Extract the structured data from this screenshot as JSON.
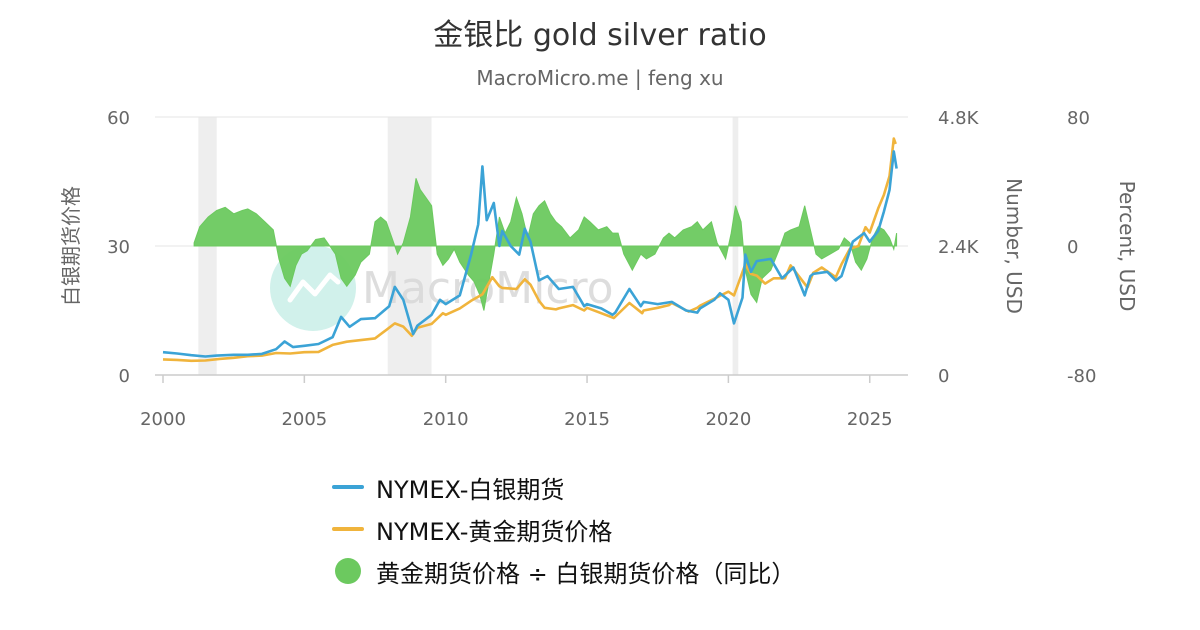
{
  "chart_data": {
    "type": "line",
    "title": "金银比 gold silver ratio",
    "subtitle": "MacroMicro.me | feng xu",
    "watermark": "MacroMicro",
    "x_ticks": [
      "2000",
      "2005",
      "2010",
      "2015",
      "2020",
      "2025"
    ],
    "x_range": [
      2000,
      2026
    ],
    "y_axes": [
      {
        "id": "left",
        "title": "白银期货价格",
        "ticks": [
          "0",
          "30",
          "60"
        ],
        "range": [
          0,
          60
        ]
      },
      {
        "id": "right1",
        "title": "Number, USD",
        "ticks": [
          "0",
          "2.4K",
          "4.8K"
        ],
        "range": [
          0,
          4800
        ]
      },
      {
        "id": "right2",
        "title": "Percent, USD",
        "ticks": [
          "-80",
          "0",
          "80"
        ],
        "range": [
          -80,
          80
        ]
      }
    ],
    "recession_bands": [
      [
        2001.25,
        2001.9
      ],
      [
        2007.95,
        2009.5
      ],
      [
        2020.15,
        2020.35
      ]
    ],
    "series": [
      {
        "name": "NYMEX-白银期货",
        "type": "line",
        "axis": "left",
        "color": "#3ba3d6",
        "points": [
          [
            2000.0,
            5.3
          ],
          [
            2000.5,
            5.0
          ],
          [
            2001.0,
            4.6
          ],
          [
            2001.5,
            4.3
          ],
          [
            2001.9,
            4.5
          ],
          [
            2002.5,
            4.7
          ],
          [
            2003.0,
            4.7
          ],
          [
            2003.5,
            4.9
          ],
          [
            2004.0,
            6.0
          ],
          [
            2004.3,
            7.8
          ],
          [
            2004.6,
            6.5
          ],
          [
            2005.0,
            6.8
          ],
          [
            2005.5,
            7.2
          ],
          [
            2006.0,
            8.8
          ],
          [
            2006.3,
            13.5
          ],
          [
            2006.6,
            11.2
          ],
          [
            2007.0,
            13.0
          ],
          [
            2007.5,
            13.2
          ],
          [
            2008.0,
            16.0
          ],
          [
            2008.2,
            20.5
          ],
          [
            2008.5,
            17.5
          ],
          [
            2008.85,
            9.5
          ],
          [
            2009.0,
            11.5
          ],
          [
            2009.5,
            14.0
          ],
          [
            2009.8,
            17.5
          ],
          [
            2010.0,
            16.5
          ],
          [
            2010.5,
            18.5
          ],
          [
            2010.9,
            28.0
          ],
          [
            2011.15,
            35.0
          ],
          [
            2011.3,
            48.5
          ],
          [
            2011.45,
            36.0
          ],
          [
            2011.7,
            40.0
          ],
          [
            2011.9,
            30.0
          ],
          [
            2012.0,
            33.5
          ],
          [
            2012.3,
            30.0
          ],
          [
            2012.6,
            28.0
          ],
          [
            2012.8,
            34.0
          ],
          [
            2013.0,
            31.0
          ],
          [
            2013.3,
            22.0
          ],
          [
            2013.6,
            23.0
          ],
          [
            2014.0,
            20.0
          ],
          [
            2014.5,
            20.5
          ],
          [
            2014.9,
            16.0
          ],
          [
            2015.0,
            16.5
          ],
          [
            2015.5,
            15.5
          ],
          [
            2015.9,
            14.0
          ],
          [
            2016.0,
            14.5
          ],
          [
            2016.5,
            20.0
          ],
          [
            2016.9,
            16.0
          ],
          [
            2017.0,
            17.0
          ],
          [
            2017.5,
            16.5
          ],
          [
            2018.0,
            17.0
          ],
          [
            2018.5,
            15.0
          ],
          [
            2018.9,
            14.5
          ],
          [
            2019.0,
            15.5
          ],
          [
            2019.5,
            17.5
          ],
          [
            2019.7,
            19.0
          ],
          [
            2020.0,
            17.5
          ],
          [
            2020.2,
            12.0
          ],
          [
            2020.5,
            18.0
          ],
          [
            2020.6,
            28.0
          ],
          [
            2020.8,
            24.0
          ],
          [
            2021.0,
            26.5
          ],
          [
            2021.5,
            27.0
          ],
          [
            2021.9,
            22.5
          ],
          [
            2022.3,
            25.0
          ],
          [
            2022.7,
            18.5
          ],
          [
            2022.9,
            23.0
          ],
          [
            2023.0,
            23.5
          ],
          [
            2023.5,
            24.0
          ],
          [
            2023.8,
            22.0
          ],
          [
            2024.0,
            23.0
          ],
          [
            2024.4,
            31.0
          ],
          [
            2024.8,
            33.0
          ],
          [
            2025.0,
            31.0
          ],
          [
            2025.3,
            33.5
          ],
          [
            2025.5,
            38.0
          ],
          [
            2025.7,
            43.0
          ],
          [
            2025.85,
            52.0
          ],
          [
            2025.95,
            48.0
          ]
        ]
      },
      {
        "name": "NYMEX-黄金期货价格",
        "type": "line",
        "axis": "right1",
        "color": "#f0b43c",
        "points": [
          [
            2000.0,
            290
          ],
          [
            2000.5,
            280
          ],
          [
            2001.0,
            265
          ],
          [
            2001.5,
            270
          ],
          [
            2002.0,
            300
          ],
          [
            2002.5,
            320
          ],
          [
            2003.0,
            350
          ],
          [
            2003.5,
            360
          ],
          [
            2004.0,
            410
          ],
          [
            2004.5,
            400
          ],
          [
            2005.0,
            425
          ],
          [
            2005.5,
            430
          ],
          [
            2006.0,
            560
          ],
          [
            2006.5,
            620
          ],
          [
            2007.0,
            650
          ],
          [
            2007.5,
            680
          ],
          [
            2007.9,
            840
          ],
          [
            2008.2,
            960
          ],
          [
            2008.5,
            900
          ],
          [
            2008.8,
            730
          ],
          [
            2009.0,
            880
          ],
          [
            2009.5,
            950
          ],
          [
            2009.9,
            1150
          ],
          [
            2010.0,
            1120
          ],
          [
            2010.5,
            1240
          ],
          [
            2010.9,
            1380
          ],
          [
            2011.3,
            1500
          ],
          [
            2011.65,
            1820
          ],
          [
            2011.9,
            1650
          ],
          [
            2012.0,
            1620
          ],
          [
            2012.5,
            1600
          ],
          [
            2012.8,
            1780
          ],
          [
            2013.0,
            1680
          ],
          [
            2013.3,
            1380
          ],
          [
            2013.5,
            1250
          ],
          [
            2013.9,
            1220
          ],
          [
            2014.0,
            1240
          ],
          [
            2014.5,
            1300
          ],
          [
            2014.9,
            1200
          ],
          [
            2015.0,
            1250
          ],
          [
            2015.5,
            1150
          ],
          [
            2015.95,
            1060
          ],
          [
            2016.5,
            1340
          ],
          [
            2016.95,
            1150
          ],
          [
            2017.0,
            1200
          ],
          [
            2017.5,
            1250
          ],
          [
            2017.9,
            1300
          ],
          [
            2018.0,
            1340
          ],
          [
            2018.6,
            1180
          ],
          [
            2018.9,
            1250
          ],
          [
            2019.0,
            1290
          ],
          [
            2019.5,
            1420
          ],
          [
            2019.8,
            1500
          ],
          [
            2020.0,
            1550
          ],
          [
            2020.2,
            1480
          ],
          [
            2020.6,
            2060
          ],
          [
            2020.8,
            1880
          ],
          [
            2021.0,
            1850
          ],
          [
            2021.3,
            1700
          ],
          [
            2021.6,
            1800
          ],
          [
            2022.0,
            1800
          ],
          [
            2022.2,
            2040
          ],
          [
            2022.8,
            1630
          ],
          [
            2023.0,
            1900
          ],
          [
            2023.3,
            2000
          ],
          [
            2023.8,
            1820
          ],
          [
            2024.0,
            2060
          ],
          [
            2024.3,
            2350
          ],
          [
            2024.6,
            2400
          ],
          [
            2024.85,
            2750
          ],
          [
            2025.0,
            2650
          ],
          [
            2025.3,
            3100
          ],
          [
            2025.5,
            3350
          ],
          [
            2025.7,
            3700
          ],
          [
            2025.85,
            4400
          ],
          [
            2025.92,
            4300
          ]
        ]
      },
      {
        "name": "黄金期货价格 ÷ 白银期货价格（同比）",
        "type": "area",
        "axis": "right2",
        "color": "#6cc95f",
        "points": [
          [
            2001.1,
            2
          ],
          [
            2001.3,
            12
          ],
          [
            2001.6,
            18
          ],
          [
            2001.9,
            22
          ],
          [
            2002.2,
            24
          ],
          [
            2002.5,
            20
          ],
          [
            2002.8,
            22
          ],
          [
            2003.0,
            23
          ],
          [
            2003.3,
            20
          ],
          [
            2003.6,
            15
          ],
          [
            2003.9,
            10
          ],
          [
            2004.1,
            -8
          ],
          [
            2004.3,
            -20
          ],
          [
            2004.5,
            -25
          ],
          [
            2004.7,
            -12
          ],
          [
            2004.9,
            -5
          ],
          [
            2005.1,
            -3
          ],
          [
            2005.4,
            4
          ],
          [
            2005.7,
            5
          ],
          [
            2005.9,
            0
          ],
          [
            2006.1,
            -5
          ],
          [
            2006.3,
            -20
          ],
          [
            2006.5,
            -25
          ],
          [
            2006.8,
            -18
          ],
          [
            2007.0,
            -10
          ],
          [
            2007.3,
            -5
          ],
          [
            2007.5,
            15
          ],
          [
            2007.7,
            18
          ],
          [
            2007.9,
            15
          ],
          [
            2008.1,
            5
          ],
          [
            2008.3,
            -5
          ],
          [
            2008.5,
            2
          ],
          [
            2008.75,
            18
          ],
          [
            2008.95,
            42
          ],
          [
            2009.1,
            35
          ],
          [
            2009.3,
            30
          ],
          [
            2009.5,
            25
          ],
          [
            2009.7,
            -5
          ],
          [
            2009.9,
            -12
          ],
          [
            2010.1,
            -8
          ],
          [
            2010.3,
            -2
          ],
          [
            2010.5,
            -10
          ],
          [
            2010.8,
            -18
          ],
          [
            2011.0,
            -22
          ],
          [
            2011.2,
            -30
          ],
          [
            2011.35,
            -40
          ],
          [
            2011.5,
            -25
          ],
          [
            2011.7,
            -5
          ],
          [
            2011.9,
            18
          ],
          [
            2012.1,
            8
          ],
          [
            2012.3,
            15
          ],
          [
            2012.5,
            30
          ],
          [
            2012.7,
            20
          ],
          [
            2012.9,
            5
          ],
          [
            2013.1,
            20
          ],
          [
            2013.3,
            25
          ],
          [
            2013.5,
            28
          ],
          [
            2013.7,
            20
          ],
          [
            2013.9,
            15
          ],
          [
            2014.1,
            12
          ],
          [
            2014.4,
            5
          ],
          [
            2014.7,
            10
          ],
          [
            2014.9,
            18
          ],
          [
            2015.1,
            15
          ],
          [
            2015.4,
            10
          ],
          [
            2015.7,
            12
          ],
          [
            2015.9,
            8
          ],
          [
            2016.1,
            8
          ],
          [
            2016.3,
            -5
          ],
          [
            2016.6,
            -15
          ],
          [
            2016.9,
            -5
          ],
          [
            2017.1,
            -8
          ],
          [
            2017.4,
            -5
          ],
          [
            2017.7,
            5
          ],
          [
            2017.9,
            8
          ],
          [
            2018.1,
            5
          ],
          [
            2018.4,
            10
          ],
          [
            2018.7,
            12
          ],
          [
            2018.9,
            15
          ],
          [
            2019.1,
            10
          ],
          [
            2019.4,
            15
          ],
          [
            2019.6,
            2
          ],
          [
            2019.9,
            -8
          ],
          [
            2020.1,
            8
          ],
          [
            2020.25,
            25
          ],
          [
            2020.45,
            15
          ],
          [
            2020.6,
            -15
          ],
          [
            2020.8,
            -30
          ],
          [
            2021.0,
            -35
          ],
          [
            2021.2,
            -20
          ],
          [
            2021.5,
            -15
          ],
          [
            2021.8,
            -2
          ],
          [
            2022.0,
            8
          ],
          [
            2022.2,
            10
          ],
          [
            2022.5,
            12
          ],
          [
            2022.7,
            25
          ],
          [
            2022.9,
            10
          ],
          [
            2023.1,
            -5
          ],
          [
            2023.3,
            -8
          ],
          [
            2023.6,
            -5
          ],
          [
            2023.9,
            -2
          ],
          [
            2024.1,
            5
          ],
          [
            2024.3,
            2
          ],
          [
            2024.5,
            -10
          ],
          [
            2024.7,
            -15
          ],
          [
            2024.9,
            -8
          ],
          [
            2025.1,
            5
          ],
          [
            2025.3,
            12
          ],
          [
            2025.5,
            10
          ],
          [
            2025.7,
            5
          ],
          [
            2025.85,
            -2
          ],
          [
            2025.95,
            8
          ]
        ]
      }
    ]
  },
  "legend": {
    "items": [
      {
        "label": "NYMEX-白银期货",
        "color": "#3ba3d6",
        "shape": "line"
      },
      {
        "label": "NYMEX-黄金期货价格",
        "color": "#f0b43c",
        "shape": "line"
      },
      {
        "label": "黄金期货价格 ÷ 白银期货价格（同比）",
        "color": "#6cc95f",
        "shape": "circle"
      }
    ]
  }
}
